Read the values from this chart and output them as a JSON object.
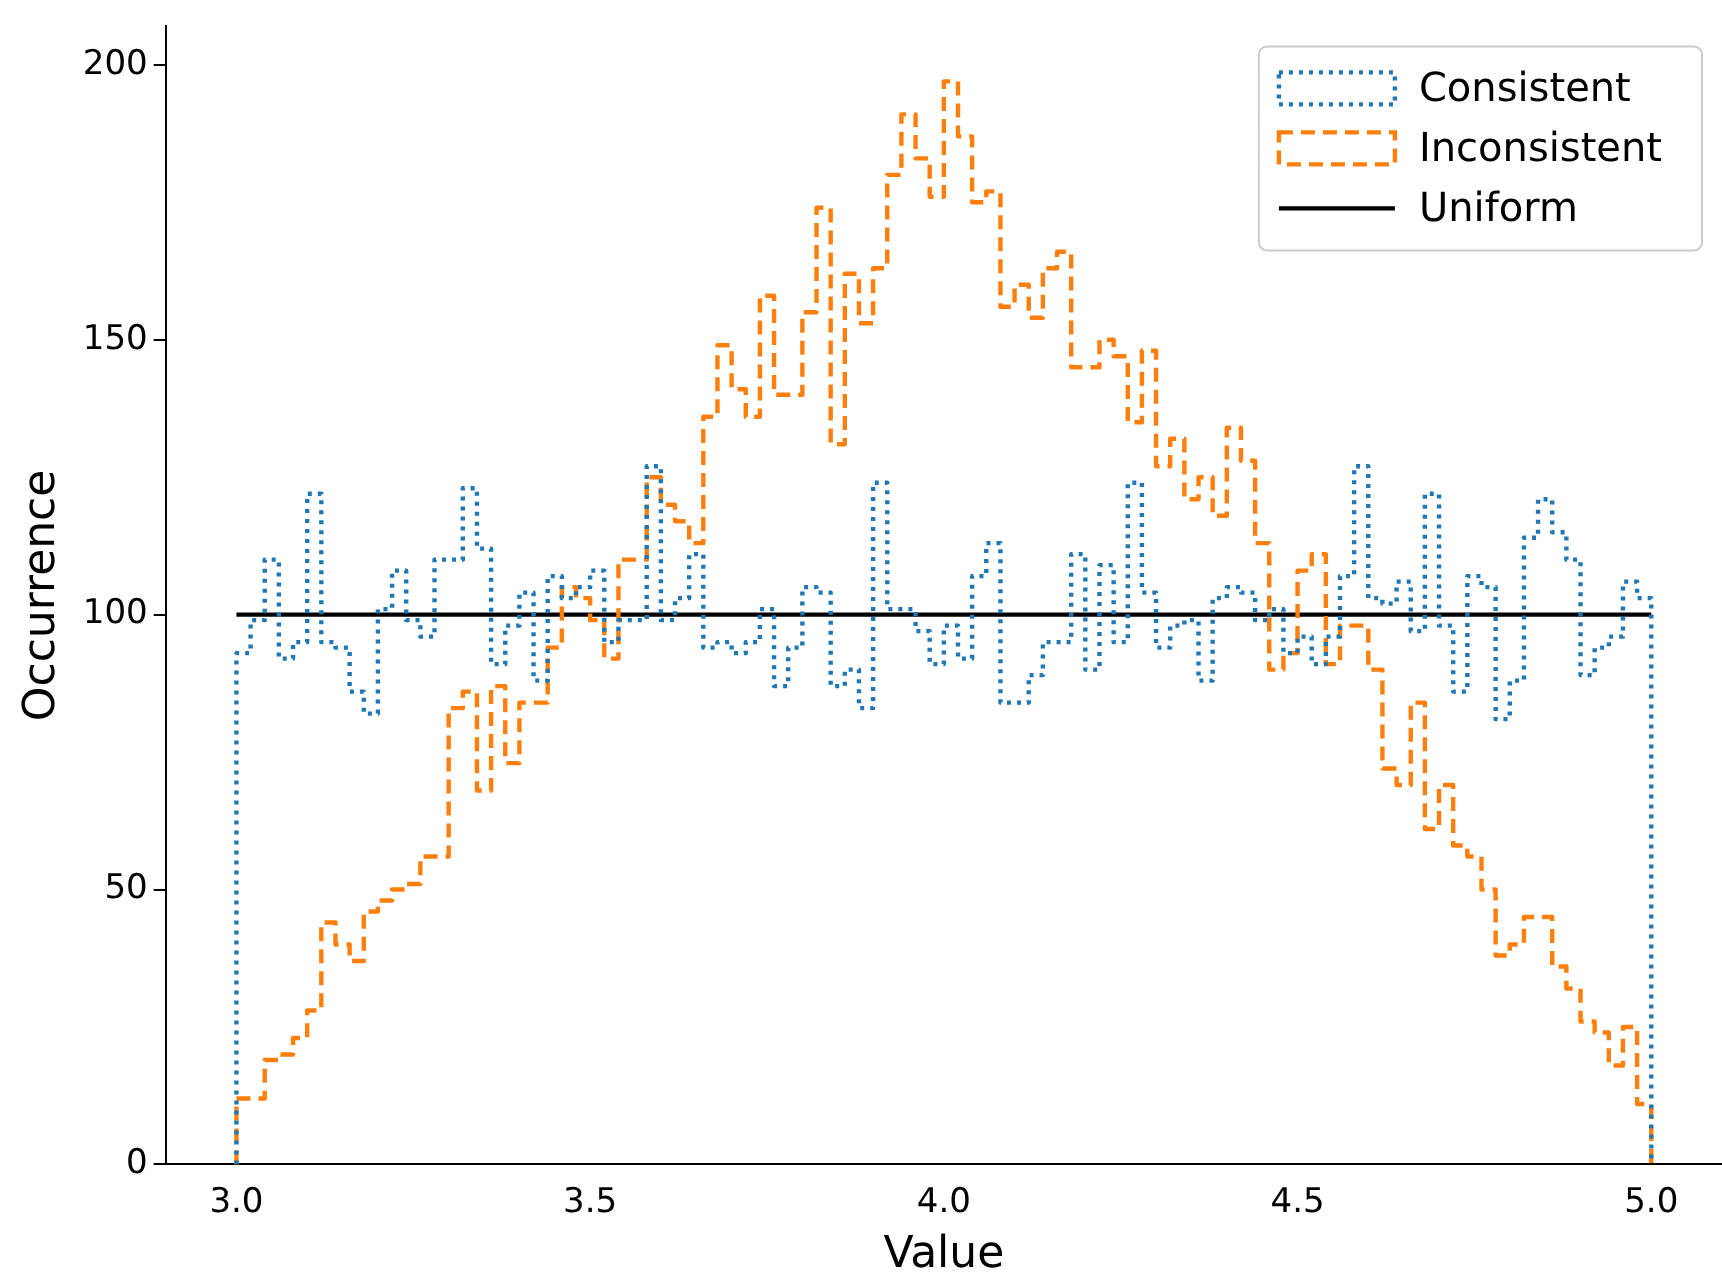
{
  "chart_data": {
    "type": "histogram",
    "xlabel": "Value",
    "ylabel": "Occurrence",
    "bins": [
      3.0,
      3.02,
      3.04,
      3.06,
      3.08,
      3.1,
      3.12,
      3.14,
      3.16,
      3.18,
      3.2,
      3.22,
      3.24,
      3.26,
      3.28,
      3.3,
      3.32,
      3.34,
      3.36,
      3.38,
      3.4,
      3.42,
      3.44,
      3.46,
      3.48,
      3.5,
      3.52,
      3.54,
      3.56,
      3.58,
      3.6,
      3.62,
      3.64,
      3.66,
      3.68,
      3.7,
      3.72,
      3.74,
      3.76,
      3.78,
      3.8,
      3.82,
      3.84,
      3.86,
      3.88,
      3.9,
      3.92,
      3.94,
      3.96,
      3.98,
      4.0,
      4.02,
      4.04,
      4.06,
      4.08,
      4.1,
      4.12,
      4.14,
      4.16,
      4.18,
      4.2,
      4.22,
      4.24,
      4.26,
      4.28,
      4.3,
      4.32,
      4.34,
      4.36,
      4.38,
      4.4,
      4.42,
      4.44,
      4.46,
      4.48,
      4.5,
      4.52,
      4.54,
      4.56,
      4.58,
      4.6,
      4.62,
      4.64,
      4.66,
      4.68,
      4.7,
      4.72,
      4.74,
      4.76,
      4.78,
      4.8,
      4.82,
      4.84,
      4.86,
      4.88,
      4.9,
      4.92,
      4.94,
      4.96,
      4.98,
      5.0
    ],
    "series": [
      {
        "name": "Consistent",
        "type": "histogram",
        "color": "#1f77b4",
        "line_style": "dotted",
        "values": [
          93,
          99,
          110,
          92,
          95,
          122,
          95,
          94,
          86,
          82,
          101,
          108,
          99,
          96,
          110,
          110,
          123,
          112,
          91,
          98,
          104,
          88,
          107,
          103,
          105,
          108,
          95,
          99,
          99,
          127,
          99,
          103,
          111,
          94,
          95,
          93,
          95,
          101,
          87,
          94,
          105,
          104,
          87,
          90,
          83,
          124,
          101,
          101,
          97,
          91,
          98,
          92,
          107,
          113,
          84,
          84,
          89,
          95,
          95,
          111,
          90,
          109,
          95,
          124,
          104,
          94,
          98,
          99,
          88,
          103,
          105,
          104,
          99,
          101,
          93,
          96,
          91,
          96,
          107,
          127,
          103,
          102,
          106,
          97,
          122,
          98,
          86,
          107,
          105,
          81,
          88,
          114,
          121,
          115,
          110,
          89,
          94,
          96,
          106,
          103
        ]
      },
      {
        "name": "Inconsistent",
        "type": "histogram",
        "color": "#ff7f0e",
        "line_style": "dashed",
        "values": [
          12,
          12,
          19,
          20,
          23,
          28,
          44,
          40,
          37,
          46,
          48,
          50,
          51,
          56,
          56,
          83,
          86,
          68,
          87,
          73,
          84,
          84,
          94,
          105,
          103,
          99,
          92,
          110,
          110,
          125,
          120,
          117,
          113,
          136,
          149,
          141,
          136,
          158,
          140,
          140,
          155,
          174,
          131,
          162,
          153,
          163,
          180,
          191,
          183,
          176,
          197,
          187,
          175,
          177,
          156,
          160,
          154,
          163,
          166,
          145,
          145,
          150,
          147,
          135,
          148,
          127,
          132,
          121,
          125,
          118,
          134,
          128,
          113,
          90,
          93,
          108,
          111,
          91,
          98,
          98,
          90,
          72,
          69,
          84,
          61,
          69,
          58,
          56,
          50,
          38,
          40,
          45,
          45,
          36,
          32,
          26,
          24,
          18,
          25,
          11
        ]
      },
      {
        "name": "Uniform",
        "type": "line",
        "color": "#000000",
        "line_style": "solid",
        "x": [
          3.0,
          5.0
        ],
        "values": [
          100,
          100
        ]
      }
    ],
    "xlim": [
      2.9,
      5.1
    ],
    "xticks": [
      {
        "value": 3.0,
        "label": "3.0"
      },
      {
        "value": 3.5,
        "label": "3.5"
      },
      {
        "value": 4.0,
        "label": "4.0"
      },
      {
        "value": 4.5,
        "label": "4.5"
      },
      {
        "value": 5.0,
        "label": "5.0"
      }
    ],
    "ylim": [
      0,
      207
    ],
    "yticks": [
      0,
      50,
      100,
      150,
      200
    ],
    "grid": false,
    "legend": "top right"
  }
}
